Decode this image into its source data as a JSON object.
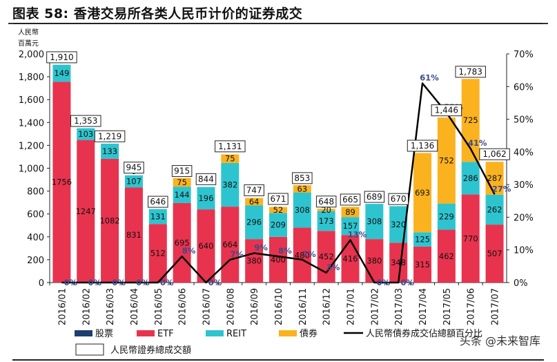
{
  "header": {
    "title": "图表 58:  香港交易所各类人民币计价的证券成交"
  },
  "watermark": "头条 @未来智库",
  "colors": {
    "etf": "#e8334e",
    "reit": "#2ec4cf",
    "bond": "#fbb21f",
    "stock": "#1f3d6f",
    "line": "#000000"
  },
  "chart_data": {
    "type": "bar",
    "stacked": true,
    "yunit": [
      "人民幣",
      "百萬元"
    ],
    "categories": [
      "2016/01",
      "2016/02",
      "2016/03",
      "2016/04",
      "2016/05",
      "2016/06",
      "2016/07",
      "2016/08",
      "2016/09",
      "2016/10",
      "2016/11",
      "2016/12",
      "2017/01",
      "2017/02",
      "2017/03",
      "2017/04",
      "2017/05",
      "2017/06",
      "2017/07"
    ],
    "series": [
      {
        "name": "股票",
        "values": [
          0,
          0,
          0,
          0,
          0,
          0,
          0,
          0,
          0,
          0,
          0,
          0,
          0,
          0,
          0,
          0,
          0,
          0,
          0
        ]
      },
      {
        "name": "ETF",
        "values": [
          1756,
          1247,
          1082,
          831,
          512,
          695,
          640,
          664,
          380,
          400,
          480,
          452,
          416,
          380,
          348,
          315,
          462,
          770,
          507
        ]
      },
      {
        "name": "REIT",
        "values": [
          149,
          103,
          133,
          107,
          131,
          144,
          196,
          382,
          296,
          209,
          308,
          173,
          157,
          308,
          320,
          125,
          229,
          286,
          262
        ]
      },
      {
        "name": "債券",
        "values": [
          0,
          0,
          0,
          0,
          0,
          75,
          0,
          75,
          64,
          52,
          63,
          20,
          89,
          0,
          0,
          693,
          752,
          725,
          287
        ]
      }
    ],
    "line_series": {
      "name": "人民幣債券成交佔總額百分比",
      "values": [
        0,
        0,
        0,
        0,
        0,
        8,
        0,
        7,
        9,
        8,
        7,
        3,
        13,
        0,
        0,
        61,
        52,
        41,
        27
      ]
    },
    "totals": {
      "name": "人民幣證券總成交額",
      "values": [
        1910,
        1353,
        1219,
        945,
        646,
        915,
        844,
        1131,
        747,
        671,
        853,
        648,
        665,
        689,
        670,
        1136,
        1446,
        1783,
        1062
      ]
    },
    "zero_labels": [
      "0",
      "0",
      "0",
      "0",
      "0",
      "",
      "",
      "",
      "",
      "",
      "",
      "",
      "",
      "0",
      "0",
      "",
      "",
      "",
      ""
    ],
    "pct_labels": [
      "0%",
      "0%",
      "0%",
      "0%",
      "0%",
      "8%",
      "0%",
      "7%",
      "9%",
      "8%",
      "7%",
      "3%",
      "13%",
      "0%",
      "0%",
      "61%",
      "52%",
      "41%",
      "27%"
    ],
    "ylim": [
      0,
      2000
    ],
    "yticks": [
      "0",
      "200",
      "400",
      "600",
      "800",
      "1,000",
      "1,200",
      "1,400",
      "1,600",
      "1,800",
      "2,000"
    ],
    "y2lim": [
      0,
      70
    ],
    "y2ticks": [
      "0%",
      "10%",
      "20%",
      "30%",
      "40%",
      "50%",
      "60%",
      "70%"
    ],
    "legend": [
      "股票",
      "ETF",
      "REIT",
      "債券",
      "人民幣債券成交佔總額百分比",
      "人民幣證券總成交額"
    ]
  }
}
